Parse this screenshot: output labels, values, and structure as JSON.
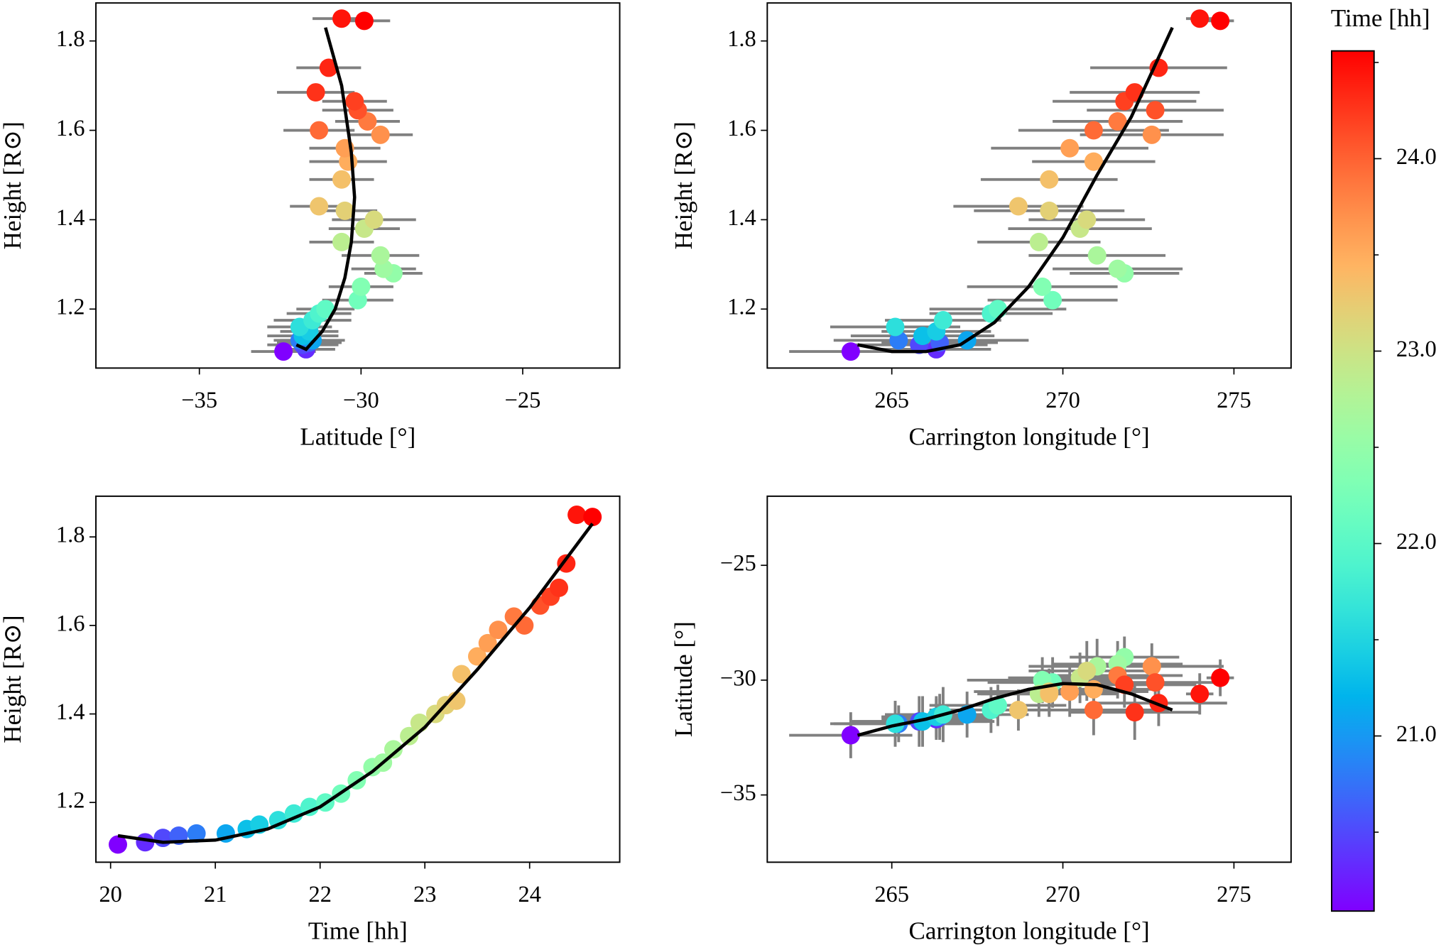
{
  "chart_data": [
    {
      "type": "scatter",
      "xlabel": "Latitude [°]",
      "ylabel": "Height [R⊙]",
      "xlim": [
        -38.2,
        -22.0
      ],
      "ylim": [
        1.068,
        1.885
      ],
      "xticks": [
        {
          "value": -35,
          "label": "−35"
        },
        {
          "value": -30,
          "label": "−30"
        },
        {
          "value": -25,
          "label": "−25"
        }
      ],
      "yticks": [
        1.2,
        1.4,
        1.6,
        1.8
      ],
      "x": [
        -32.4,
        -31.7,
        -31.8,
        -31.6,
        -31.9,
        -31.5,
        -31.8,
        -31.6,
        -31.9,
        -31.5,
        -31.3,
        -31.1,
        -30.1,
        -30.0,
        -29.0,
        -29.3,
        -29.4,
        -30.6,
        -29.9,
        -29.6,
        -30.5,
        -31.3,
        -30.6,
        -30.4,
        -30.5,
        -29.4,
        -29.8,
        -31.3,
        -30.1,
        -30.2,
        -31.4,
        -31.0,
        -30.6,
        -29.9
      ],
      "y": [
        1.105,
        1.11,
        1.12,
        1.125,
        1.13,
        1.13,
        1.14,
        1.15,
        1.16,
        1.175,
        1.19,
        1.2,
        1.22,
        1.25,
        1.28,
        1.29,
        1.32,
        1.35,
        1.38,
        1.4,
        1.42,
        1.43,
        1.49,
        1.53,
        1.56,
        1.59,
        1.62,
        1.6,
        1.645,
        1.665,
        1.685,
        1.74,
        1.85,
        1.845
      ],
      "xerr": [
        1.0,
        0.9,
        1.1,
        1.0,
        0.8,
        1.0,
        1.1,
        0.9,
        1.0,
        1.2,
        1.0,
        0.9,
        1.1,
        1.0,
        0.9,
        1.0,
        1.2,
        1.0,
        1.1,
        1.3,
        1.0,
        0.9,
        1.0,
        1.2,
        1.1,
        1.0,
        1.0,
        1.1,
        1.1,
        1.0,
        1.2,
        1.0,
        0.9,
        0.8
      ],
      "c": [
        20.07,
        20.33,
        20.5,
        20.65,
        20.82,
        21.1,
        21.3,
        21.42,
        21.6,
        21.75,
        21.9,
        22.05,
        22.2,
        22.35,
        22.5,
        22.6,
        22.7,
        22.85,
        22.95,
        23.1,
        23.2,
        23.3,
        23.35,
        23.5,
        23.6,
        23.7,
        23.85,
        23.95,
        24.1,
        24.2,
        24.28,
        24.35,
        24.45,
        24.6
      ],
      "errorbar_color": "#808080",
      "fit": {
        "color": "#000000",
        "x": [
          -32.0,
          -31.7,
          -31.2,
          -30.8,
          -30.5,
          -30.3,
          -30.2,
          -30.3,
          -30.6,
          -31.1
        ],
        "y": [
          1.12,
          1.11,
          1.15,
          1.2,
          1.27,
          1.35,
          1.45,
          1.55,
          1.7,
          1.83
        ]
      }
    },
    {
      "type": "scatter",
      "xlabel": "Carrington longitude [°]",
      "ylabel": "Height [R⊙]",
      "xlim": [
        261.36,
        276.67
      ],
      "ylim": [
        1.068,
        1.885
      ],
      "xticks": [
        265,
        270,
        275
      ],
      "yticks": [
        1.2,
        1.4,
        1.6,
        1.8
      ],
      "x": [
        263.8,
        266.3,
        265.8,
        266.4,
        265.2,
        267.2,
        265.9,
        266.3,
        265.1,
        266.5,
        267.9,
        268.1,
        269.7,
        269.4,
        271.8,
        271.6,
        271.0,
        269.3,
        270.5,
        270.7,
        269.6,
        268.7,
        269.6,
        270.9,
        270.2,
        272.6,
        271.6,
        270.9,
        272.7,
        271.8,
        272.1,
        272.8,
        274.0,
        274.6
      ],
      "y": [
        1.105,
        1.11,
        1.12,
        1.125,
        1.13,
        1.13,
        1.14,
        1.15,
        1.16,
        1.175,
        1.19,
        1.2,
        1.22,
        1.25,
        1.28,
        1.29,
        1.32,
        1.35,
        1.38,
        1.4,
        1.42,
        1.43,
        1.49,
        1.53,
        1.56,
        1.59,
        1.62,
        1.6,
        1.645,
        1.665,
        1.685,
        1.74,
        1.85,
        1.845
      ],
      "xerr": [
        1.8,
        1.6,
        2.0,
        1.7,
        1.9,
        1.8,
        2.1,
        1.6,
        1.9,
        1.7,
        1.8,
        2.0,
        1.9,
        2.2,
        1.6,
        1.9,
        2.0,
        1.8,
        2.1,
        1.7,
        2.2,
        1.9,
        2.0,
        1.8,
        2.3,
        2.1,
        1.9,
        2.2,
        2.0,
        2.1,
        1.9,
        2.0,
        0.4,
        0.4
      ],
      "c": [
        20.07,
        20.33,
        20.5,
        20.65,
        20.82,
        21.1,
        21.3,
        21.42,
        21.6,
        21.75,
        21.9,
        22.05,
        22.2,
        22.35,
        22.5,
        22.6,
        22.7,
        22.85,
        22.95,
        23.1,
        23.2,
        23.3,
        23.35,
        23.5,
        23.6,
        23.7,
        23.85,
        23.95,
        24.1,
        24.2,
        24.28,
        24.35,
        24.45,
        24.6
      ],
      "errorbar_color": "#808080",
      "fit": {
        "color": "#000000",
        "x": [
          264,
          265,
          266,
          267,
          268,
          269,
          270,
          271,
          272,
          273.2
        ],
        "y": [
          1.12,
          1.105,
          1.105,
          1.12,
          1.17,
          1.25,
          1.36,
          1.5,
          1.63,
          1.83
        ]
      }
    },
    {
      "type": "scatter",
      "xlabel": "Time [hh]",
      "ylabel": "Height [R⊙]",
      "xlim": [
        19.86,
        24.86
      ],
      "ylim": [
        1.065,
        1.892
      ],
      "xticks": [
        20,
        21,
        22,
        23,
        24
      ],
      "yticks": [
        1.2,
        1.4,
        1.6,
        1.8
      ],
      "x": [
        20.07,
        20.33,
        20.5,
        20.65,
        20.82,
        21.1,
        21.3,
        21.42,
        21.6,
        21.75,
        21.9,
        22.05,
        22.2,
        22.35,
        22.5,
        22.6,
        22.7,
        22.85,
        22.95,
        23.1,
        23.2,
        23.3,
        23.35,
        23.5,
        23.6,
        23.7,
        23.85,
        23.95,
        24.1,
        24.2,
        24.28,
        24.35,
        24.45,
        24.6
      ],
      "y": [
        1.105,
        1.11,
        1.12,
        1.125,
        1.13,
        1.13,
        1.14,
        1.15,
        1.16,
        1.175,
        1.19,
        1.2,
        1.22,
        1.25,
        1.28,
        1.29,
        1.32,
        1.35,
        1.38,
        1.4,
        1.42,
        1.43,
        1.49,
        1.53,
        1.56,
        1.59,
        1.62,
        1.6,
        1.645,
        1.665,
        1.685,
        1.74,
        1.85,
        1.845
      ],
      "c": [
        20.07,
        20.33,
        20.5,
        20.65,
        20.82,
        21.1,
        21.3,
        21.42,
        21.6,
        21.75,
        21.9,
        22.05,
        22.2,
        22.35,
        22.5,
        22.6,
        22.7,
        22.85,
        22.95,
        23.1,
        23.2,
        23.3,
        23.35,
        23.5,
        23.6,
        23.7,
        23.85,
        23.95,
        24.1,
        24.2,
        24.28,
        24.35,
        24.45,
        24.6
      ],
      "fit": {
        "color": "#000000",
        "x": [
          20.07,
          20.5,
          21,
          21.5,
          22,
          22.5,
          23,
          23.5,
          24,
          24.6
        ],
        "y": [
          1.125,
          1.11,
          1.115,
          1.14,
          1.19,
          1.27,
          1.37,
          1.5,
          1.64,
          1.83
        ]
      }
    },
    {
      "type": "scatter",
      "xlabel": "Carrington longitude [°]",
      "ylabel": "Latitude [°]",
      "xlim": [
        261.36,
        276.67
      ],
      "ylim": [
        -37.93,
        -21.99
      ],
      "xticks": [
        265,
        270,
        275
      ],
      "yticks": [
        {
          "value": -35,
          "label": "−35"
        },
        {
          "value": -30,
          "label": "−30"
        },
        {
          "value": -25,
          "label": "−25"
        }
      ],
      "x": [
        263.8,
        266.3,
        265.8,
        266.4,
        265.2,
        267.2,
        265.9,
        266.3,
        265.1,
        266.5,
        267.9,
        268.1,
        269.7,
        269.4,
        271.8,
        271.6,
        271.0,
        269.3,
        270.5,
        270.7,
        269.6,
        268.7,
        269.6,
        270.9,
        270.2,
        272.6,
        271.6,
        270.9,
        272.7,
        271.8,
        272.1,
        272.8,
        274.0,
        274.6
      ],
      "y": [
        -32.4,
        -31.7,
        -31.8,
        -31.6,
        -31.9,
        -31.5,
        -31.8,
        -31.6,
        -31.9,
        -31.5,
        -31.3,
        -31.1,
        -30.1,
        -30.0,
        -29.0,
        -29.3,
        -29.4,
        -30.6,
        -29.9,
        -29.6,
        -30.5,
        -31.3,
        -30.6,
        -30.4,
        -30.5,
        -29.4,
        -29.8,
        -31.3,
        -30.1,
        -30.2,
        -31.4,
        -31.0,
        -30.6,
        -29.9
      ],
      "xerr": [
        1.8,
        1.6,
        2.0,
        1.7,
        1.9,
        1.8,
        2.1,
        1.6,
        1.9,
        1.7,
        1.8,
        2.0,
        1.9,
        2.2,
        1.6,
        1.9,
        2.0,
        1.8,
        2.1,
        1.7,
        2.2,
        1.9,
        2.0,
        1.8,
        2.3,
        2.1,
        1.9,
        2.2,
        2.0,
        2.1,
        1.9,
        2.0,
        0.4,
        0.4
      ],
      "yerr": [
        1.0,
        0.9,
        1.1,
        1.0,
        0.8,
        1.0,
        1.1,
        0.9,
        1.0,
        1.2,
        1.0,
        0.9,
        1.1,
        1.0,
        0.9,
        1.0,
        1.2,
        1.0,
        1.1,
        1.3,
        1.0,
        0.9,
        1.0,
        1.2,
        1.1,
        1.0,
        1.0,
        1.1,
        1.1,
        1.0,
        1.2,
        1.0,
        0.9,
        0.8
      ],
      "c": [
        20.07,
        20.33,
        20.5,
        20.65,
        20.82,
        21.1,
        21.3,
        21.42,
        21.6,
        21.75,
        21.9,
        22.05,
        22.2,
        22.35,
        22.5,
        22.6,
        22.7,
        22.85,
        22.95,
        23.1,
        23.2,
        23.3,
        23.35,
        23.5,
        23.6,
        23.7,
        23.85,
        23.95,
        24.1,
        24.2,
        24.28,
        24.35,
        24.45,
        24.6
      ],
      "errorbar_color": "#808080",
      "fit": {
        "color": "#000000",
        "x": [
          264,
          265,
          266,
          267,
          268,
          269,
          270,
          271,
          272,
          273.2
        ],
        "y": [
          -32.4,
          -32.0,
          -31.7,
          -31.3,
          -30.8,
          -30.4,
          -30.15,
          -30.2,
          -30.6,
          -31.3
        ]
      }
    }
  ],
  "colorbar": {
    "label": "Time [hh]",
    "colormap": "rainbow",
    "lim": [
      20.09,
      24.56
    ],
    "ticks": [
      {
        "value": 21,
        "label": "21.0"
      },
      {
        "value": 22,
        "label": "22.0"
      },
      {
        "value": 23,
        "label": "23.0"
      },
      {
        "value": 24,
        "label": "24.0"
      }
    ],
    "minor_ticks": [
      20.5,
      21.5,
      22.5,
      23.5,
      24.5
    ]
  }
}
